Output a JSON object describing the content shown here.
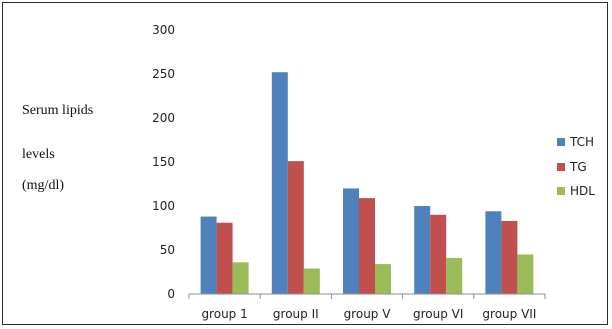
{
  "chart_data": {
    "type": "bar",
    "categories": [
      "group 1",
      "group II",
      "group V",
      "group VI",
      "group VII"
    ],
    "series": [
      {
        "name": "TCH",
        "color": "#4F81BD",
        "values": [
          88,
          252,
          120,
          100,
          94
        ]
      },
      {
        "name": "TG",
        "color": "#C0504D",
        "values": [
          81,
          151,
          109,
          90,
          83
        ]
      },
      {
        "name": "HDL",
        "color": "#9BBB59",
        "values": [
          36,
          29,
          34,
          41,
          45
        ]
      }
    ],
    "ylabel_lines": [
      "Serum lipids",
      "levels",
      "(mg/dl)"
    ],
    "ylim": [
      0,
      300
    ],
    "yticks": [
      0,
      50,
      100,
      150,
      200,
      250,
      300
    ],
    "grid": false,
    "legend_position": "right"
  }
}
